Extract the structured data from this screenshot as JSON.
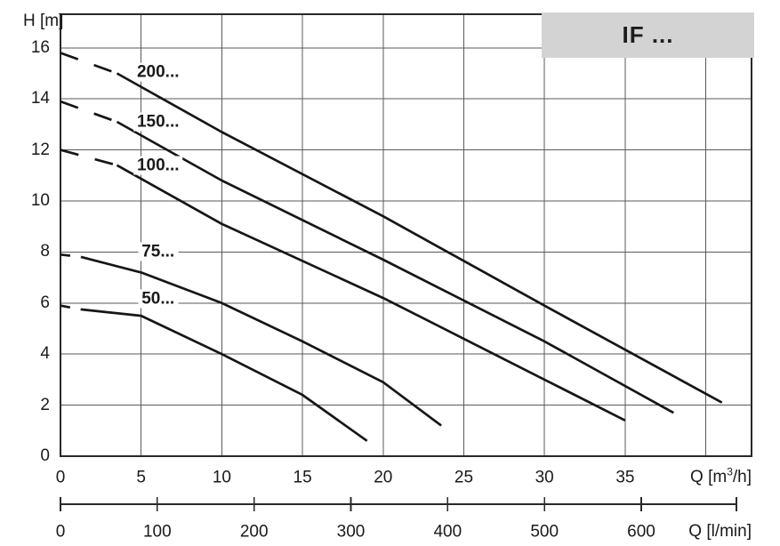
{
  "title_box": {
    "label": "IF ..."
  },
  "colors": {
    "background": "#ffffff",
    "grid": "#5a5a5a",
    "border": "#282828",
    "curve": "#161616",
    "text": "#1a1a1a",
    "title_box_fill": "#d3d3d3"
  },
  "chart_data": {
    "type": "line",
    "title": "IF ...",
    "grid": "on",
    "x_axis": {
      "label_pre": "Q [m",
      "label_sup": "3",
      "label_post": "/h]",
      "label_full": "Q [m³/h]",
      "ticks": [
        0,
        5,
        10,
        15,
        20,
        25,
        30,
        35
      ],
      "gridlines": [
        5,
        10,
        15,
        20,
        25,
        30,
        35,
        40
      ],
      "range": [
        0,
        42.8
      ]
    },
    "x_axis_secondary": {
      "label": "Q [l/min]",
      "ticks": [
        0,
        100,
        200,
        300,
        400,
        500,
        600
      ],
      "lmin_per_m3h": 16.667,
      "has_unlabeled_end_tick": true
    },
    "y_axis": {
      "label": "H [m]",
      "ticks": [
        0,
        2,
        4,
        6,
        8,
        10,
        12,
        14,
        16
      ],
      "range": [
        0,
        17.3
      ]
    },
    "series": [
      {
        "name": "200...",
        "dash_until": 3.5,
        "dash_pattern": "21 19",
        "label_q": 6.05,
        "label_h": 15.05,
        "points": [
          [
            0,
            15.8
          ],
          [
            3.5,
            15.0
          ],
          [
            10,
            12.7
          ],
          [
            20,
            9.4
          ],
          [
            30,
            5.9
          ],
          [
            41,
            2.1
          ]
        ]
      },
      {
        "name": "150...",
        "dash_until": 3.5,
        "dash_pattern": "21 19",
        "label_q": 6.05,
        "label_h": 13.1,
        "points": [
          [
            0,
            13.9
          ],
          [
            3.5,
            13.1
          ],
          [
            10,
            10.8
          ],
          [
            20,
            7.7
          ],
          [
            30,
            4.5
          ],
          [
            38,
            1.7
          ]
        ]
      },
      {
        "name": "100...",
        "dash_until": 3.5,
        "dash_pattern": "21 19",
        "label_q": 6.05,
        "label_h": 11.4,
        "points": [
          [
            0,
            12.0
          ],
          [
            3.5,
            11.4
          ],
          [
            10,
            9.1
          ],
          [
            20,
            6.2
          ],
          [
            30,
            3.0
          ],
          [
            35,
            1.4
          ]
        ]
      },
      {
        "name": "75...",
        "dash_until": 1.3,
        "dash_pattern": "11 12",
        "label_q": 6.05,
        "label_h": 8.0,
        "points": [
          [
            0,
            7.9
          ],
          [
            1.3,
            7.8
          ],
          [
            5,
            7.2
          ],
          [
            10,
            6.0
          ],
          [
            15,
            4.5
          ],
          [
            20,
            2.9
          ],
          [
            23.6,
            1.2
          ]
        ]
      },
      {
        "name": "50...",
        "dash_until": 1.3,
        "dash_pattern": "11 12",
        "label_q": 6.05,
        "label_h": 6.15,
        "points": [
          [
            0,
            5.9
          ],
          [
            1.3,
            5.75
          ],
          [
            5,
            5.5
          ],
          [
            10,
            4.0
          ],
          [
            15,
            2.4
          ],
          [
            19,
            0.6
          ]
        ]
      }
    ]
  }
}
